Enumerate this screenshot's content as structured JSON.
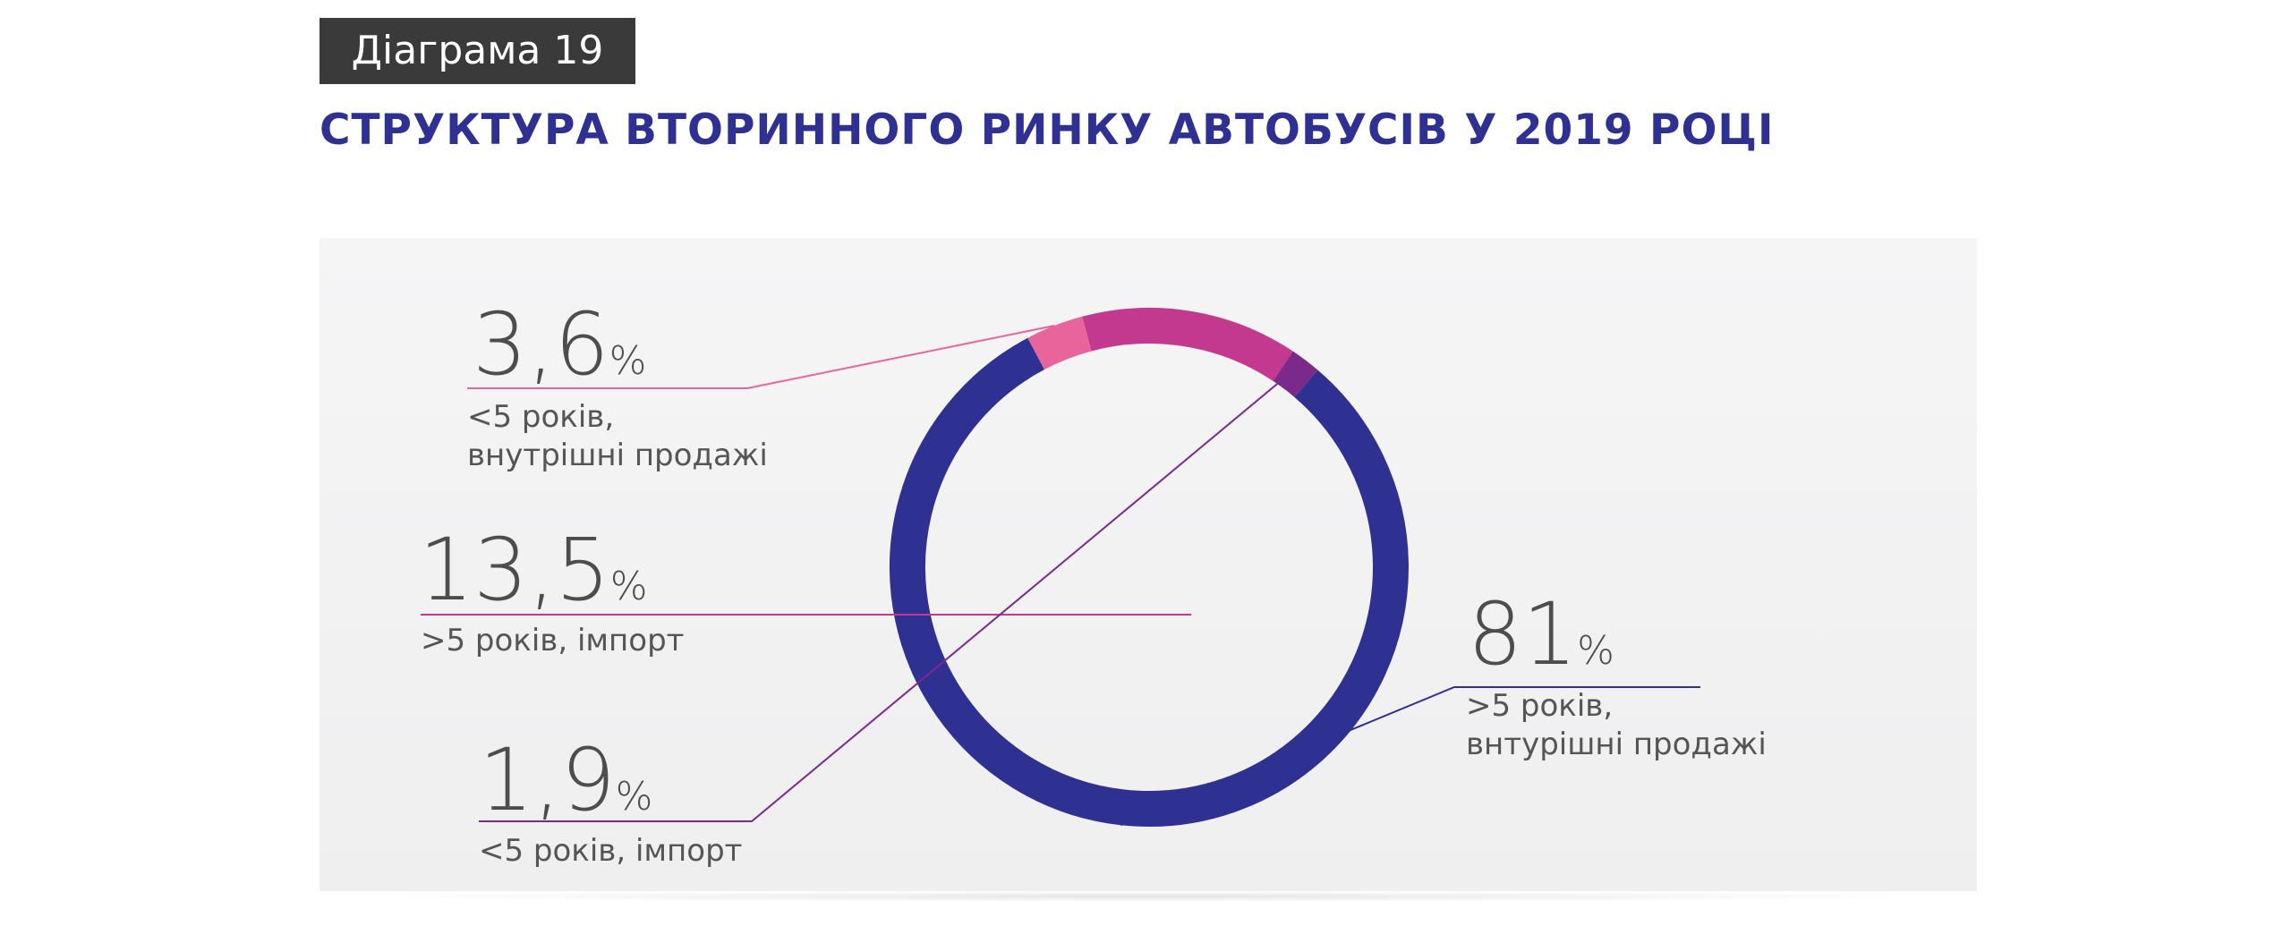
{
  "header": {
    "badge": "Діаграма 19",
    "title": "СТРУКТУРА ВТОРИННОГО РИНКУ АВТОБУСІВ У 2019 РОЦІ"
  },
  "chart_data": {
    "type": "pie",
    "style": "donut",
    "title": "СТРУКТУРА ВТОРИННОГО РИНКУ АВТОБУСІВ У 2019 РОЦІ",
    "unit": "%",
    "slices": [
      {
        "value": 81,
        "display": "81",
        "label_lines": [
          ">5 років,",
          "внтурішні продажі"
        ],
        "color": "#2e3192"
      },
      {
        "value": 3.6,
        "display": "3,6",
        "label_lines": [
          "<5 років,",
          "внутрішні продажі"
        ],
        "color": "#e9649b"
      },
      {
        "value": 13.5,
        "display": "13,5",
        "label_lines": [
          ">5 років, імпорт"
        ],
        "color": "#c2398f"
      },
      {
        "value": 1.9,
        "display": "1,9",
        "label_lines": [
          "<5 років, імпорт"
        ],
        "color": "#7b2a8c"
      }
    ]
  }
}
